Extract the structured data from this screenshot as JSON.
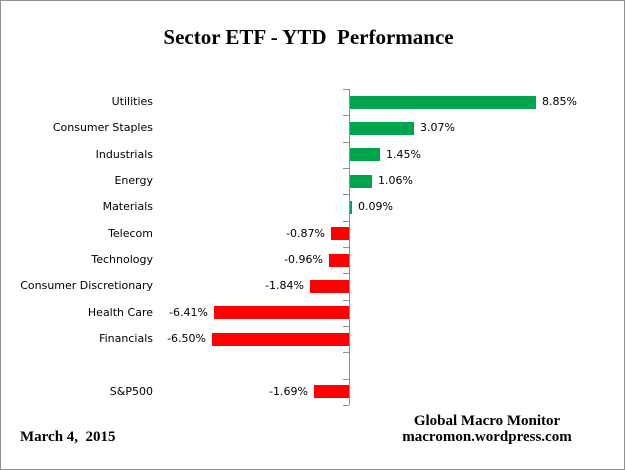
{
  "window": {
    "background_color": "#FFFFFF",
    "border_color": "#919191"
  },
  "chart_data": {
    "type": "bar",
    "orientation": "horizontal",
    "title": "Sector ETF - YTD  Performance",
    "categories": [
      "Utilities",
      "Consumer Staples",
      "Industrials",
      "Energy",
      "Materials",
      "Telecom",
      "Technology",
      "Consumer Discretionary",
      "Health Care",
      "Financials",
      "",
      "S&P500"
    ],
    "values": [
      8.85,
      3.07,
      1.45,
      1.06,
      0.09,
      -0.87,
      -0.96,
      -1.84,
      -6.41,
      -6.5,
      null,
      -1.69
    ],
    "value_labels": [
      "8.85%",
      "3.07%",
      "1.45%",
      "1.06%",
      "0.09%",
      "-0.87%",
      "-0.96%",
      "-1.84%",
      "-6.41%",
      "-6.50%",
      null,
      "-1.69%"
    ],
    "xlabel": "",
    "ylabel": "",
    "grid": false,
    "legend": false,
    "data_label_position": "outside-end",
    "positive_color": "#00A44F",
    "negative_color": "#FE0000",
    "axis_color": "#8F8F8F",
    "text_color": "#000000"
  },
  "footer": {
    "date": "March 4,  2015",
    "credit_line1": "Global Macro Monitor",
    "credit_line2": "macromon.wordpress.com"
  }
}
